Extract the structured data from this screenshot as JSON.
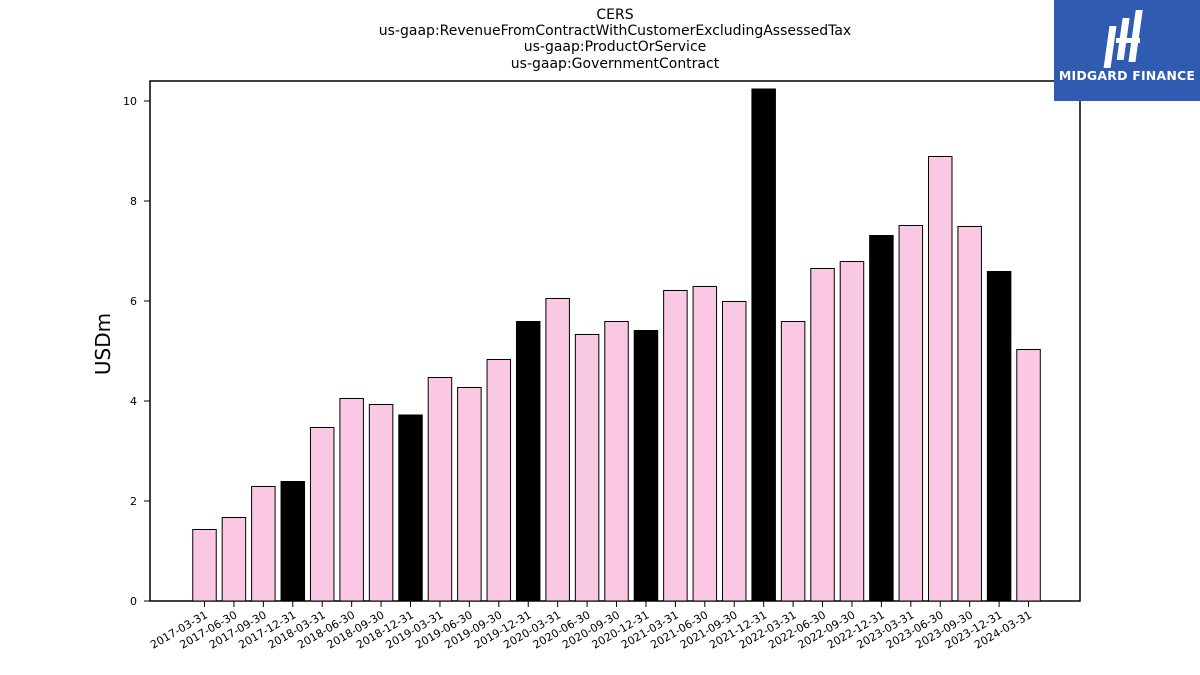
{
  "header": {
    "title_lines": [
      "CERS",
      "us-gaap:RevenueFromContractWithCustomerExcludingAssessedTax",
      "us-gaap:ProductOrService",
      "us-gaap:GovernmentContract"
    ]
  },
  "logo": {
    "text": "MIDGARD FINANCE",
    "background": "#2f5cb0"
  },
  "chart_data": {
    "type": "bar",
    "ylabel": "USDm",
    "xlabel": "",
    "ylim": [
      0,
      10.4
    ],
    "yticks": [
      "0",
      "2",
      "4",
      "6",
      "8",
      "10"
    ],
    "grid": false,
    "colors": {
      "quarter": "#fbc8e4",
      "year_end": "#000000",
      "edge": "#000000"
    },
    "categories": [
      "2017-03-31",
      "2017-06-30",
      "2017-09-30",
      "2017-12-31",
      "2018-03-31",
      "2018-06-30",
      "2018-09-30",
      "2018-12-31",
      "2019-03-31",
      "2019-06-30",
      "2019-09-30",
      "2019-12-31",
      "2020-03-31",
      "2020-06-30",
      "2020-09-30",
      "2020-12-31",
      "2021-03-31",
      "2021-06-30",
      "2021-09-30",
      "2021-12-31",
      "2022-03-31",
      "2022-06-30",
      "2022-09-30",
      "2022-12-31",
      "2023-03-31",
      "2023-06-30",
      "2023-09-30",
      "2023-12-31",
      "2024-03-31"
    ],
    "values": [
      1.43,
      1.67,
      2.29,
      2.39,
      3.47,
      4.05,
      3.93,
      3.72,
      4.47,
      4.27,
      4.83,
      5.59,
      6.05,
      5.33,
      5.59,
      5.41,
      6.21,
      6.29,
      5.99,
      10.24,
      5.59,
      6.65,
      6.79,
      7.31,
      7.51,
      8.89,
      7.49,
      6.59,
      5.03
    ],
    "highlight": [
      false,
      false,
      false,
      true,
      false,
      false,
      false,
      true,
      false,
      false,
      false,
      true,
      false,
      false,
      false,
      true,
      false,
      false,
      false,
      true,
      false,
      false,
      false,
      true,
      false,
      false,
      false,
      true,
      false
    ]
  }
}
